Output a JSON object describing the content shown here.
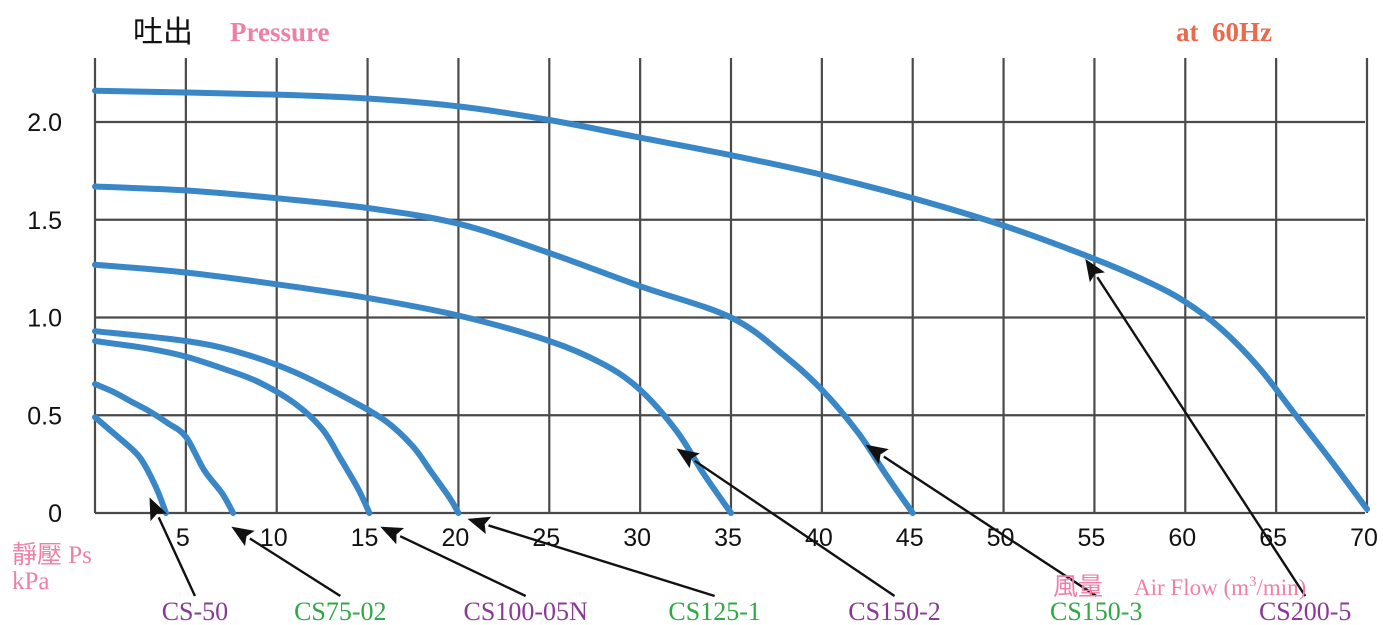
{
  "header": {
    "title_jp": "吐出",
    "title_en": "Pressure",
    "frequency": "at  60Hz"
  },
  "y_axis_title": {
    "jp": "靜壓 Ps",
    "unit": "kPa"
  },
  "x_axis_title": {
    "jp": "風量",
    "en": "Air Flow (m",
    "sup": "3",
    "tail": "/min)"
  },
  "colors": {
    "curve": "#3a87c8",
    "grid": "#4a4a4a",
    "pink": "#ee7fa6",
    "orange": "#ea6a4d",
    "purple": "#8a3a96",
    "green": "#2fa845",
    "arrow": "#111111"
  },
  "chart_data": {
    "type": "line",
    "title": "吐出 Pressure",
    "subtitle": "at 60Hz",
    "xlabel": "風量 Air Flow (m3/min)",
    "ylabel": "靜壓 Ps kPa",
    "xlim": [
      0,
      70
    ],
    "ylim": [
      0,
      2.3
    ],
    "x_ticks": [
      5,
      10,
      15,
      20,
      25,
      30,
      35,
      40,
      45,
      50,
      55,
      60,
      65,
      70
    ],
    "x_tick_labels": [
      "5",
      "10",
      "15",
      "20",
      "25",
      "30",
      "35",
      "40",
      "45",
      "50",
      "55",
      "60",
      "65",
      "70"
    ],
    "y_ticks": [
      0,
      0.5,
      1.0,
      1.5,
      2.0
    ],
    "y_tick_labels": [
      "0",
      "0.5",
      "1.0",
      "1.5",
      "2.0"
    ],
    "grid": true,
    "series": [
      {
        "name": "CS-50",
        "label_color": "purple",
        "label_x": 5.5,
        "arrow_to": [
          3,
          0.08
        ],
        "points": [
          [
            0,
            0.49
          ],
          [
            1,
            0.41
          ],
          [
            2,
            0.33
          ],
          [
            2.5,
            0.28
          ],
          [
            3,
            0.2
          ],
          [
            3.5,
            0.1
          ],
          [
            3.9,
            0
          ]
        ]
      },
      {
        "name": "CS75-02",
        "label_color": "green",
        "label_x": 13.5,
        "arrow_to": [
          7.5,
          -0.07
        ],
        "points": [
          [
            0,
            0.66
          ],
          [
            1,
            0.62
          ],
          [
            2,
            0.57
          ],
          [
            3,
            0.52
          ],
          [
            4,
            0.46
          ],
          [
            5,
            0.39
          ],
          [
            6,
            0.22
          ],
          [
            7,
            0.1
          ],
          [
            7.6,
            0
          ]
        ]
      },
      {
        "name": "CS100-05N",
        "label_color": "purple",
        "label_x": 23.7,
        "arrow_to": [
          15.7,
          -0.07
        ],
        "points": [
          [
            0,
            0.88
          ],
          [
            3,
            0.84
          ],
          [
            5,
            0.8
          ],
          [
            7,
            0.74
          ],
          [
            9,
            0.67
          ],
          [
            11,
            0.56
          ],
          [
            12.5,
            0.43
          ],
          [
            13.5,
            0.28
          ],
          [
            14.5,
            0.12
          ],
          [
            15.1,
            0
          ]
        ]
      },
      {
        "name": "CS125-1",
        "label_color": "green",
        "label_x": 34.1,
        "arrow_to": [
          20.5,
          -0.03
        ],
        "points": [
          [
            0,
            0.93
          ],
          [
            5,
            0.88
          ],
          [
            8,
            0.82
          ],
          [
            11,
            0.72
          ],
          [
            14,
            0.58
          ],
          [
            16,
            0.47
          ],
          [
            17.5,
            0.34
          ],
          [
            18.5,
            0.21
          ],
          [
            19.5,
            0.08
          ],
          [
            20,
            0
          ]
        ]
      },
      {
        "name": "CS150-2",
        "label_color": "purple",
        "label_x": 44,
        "arrow_to": [
          32,
          0.33
        ],
        "points": [
          [
            0,
            1.27
          ],
          [
            5,
            1.23
          ],
          [
            10,
            1.17
          ],
          [
            15,
            1.1
          ],
          [
            20,
            1.01
          ],
          [
            25,
            0.88
          ],
          [
            28,
            0.76
          ],
          [
            30,
            0.63
          ],
          [
            32,
            0.42
          ],
          [
            33.5,
            0.2
          ],
          [
            35,
            0
          ]
        ]
      },
      {
        "name": "CS150-3",
        "label_color": "green",
        "label_x": 55.1,
        "arrow_to": [
          42.4,
          0.35
        ],
        "points": [
          [
            0,
            1.67
          ],
          [
            5,
            1.65
          ],
          [
            10,
            1.61
          ],
          [
            15,
            1.56
          ],
          [
            20,
            1.48
          ],
          [
            25,
            1.33
          ],
          [
            30,
            1.16
          ],
          [
            35,
            1.0
          ],
          [
            38,
            0.8
          ],
          [
            40,
            0.63
          ],
          [
            42,
            0.41
          ],
          [
            43.5,
            0.2
          ],
          [
            45,
            0
          ]
        ]
      },
      {
        "name": "CS200-5",
        "label_color": "purple",
        "label_x": 66.6,
        "arrow_to": [
          54.5,
          1.3
        ],
        "points": [
          [
            0,
            2.16
          ],
          [
            10,
            2.14
          ],
          [
            15,
            2.12
          ],
          [
            20,
            2.08
          ],
          [
            25,
            2.01
          ],
          [
            30,
            1.92
          ],
          [
            35,
            1.83
          ],
          [
            40,
            1.73
          ],
          [
            45,
            1.61
          ],
          [
            50,
            1.47
          ],
          [
            55,
            1.3
          ],
          [
            58,
            1.18
          ],
          [
            60,
            1.08
          ],
          [
            62,
            0.94
          ],
          [
            64,
            0.75
          ],
          [
            66,
            0.51
          ],
          [
            68,
            0.27
          ],
          [
            70,
            0.02
          ]
        ]
      }
    ]
  }
}
